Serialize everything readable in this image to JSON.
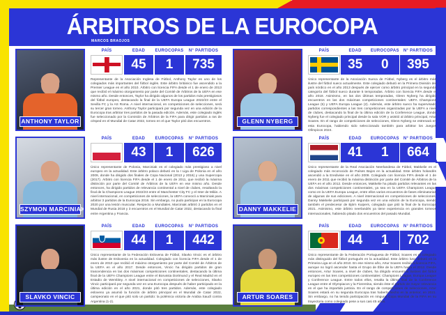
{
  "page": {
    "title": "ÁRBITROS DE LA EUROCOPA",
    "byline": "MARCOS BRAOJOS",
    "colors": {
      "accent_blue": "#2b35d6",
      "yellow": "#f9e300",
      "red": "#e61b22",
      "green": "#5a7f3e"
    }
  },
  "table_headers": {
    "pais": "PAÍS",
    "edad": "EDAD",
    "eurocopas": "EUROCOPAS",
    "partidos": "N° PARTIDOS"
  },
  "footer": {
    "ball_icon": "soccer-ball-icon"
  },
  "referees": [
    {
      "name": "ANTHONY TAYLOR",
      "flag": "england",
      "edad": "45",
      "eurocopas": "1",
      "partidos": "735",
      "bio": "Representante de la Asociación Inglesa de Fútbol, Anthony Taylor es uno de los colegiados más importantes del fútbol inglés. Este árbitro británico fue ascendido a la Premier League en el año 2010. Árbitro con licencia FIFA desde el 1 de enero de 2013 que recibió el máximo otorgamiento por parte del Comité de Árbitros de la UEFA en ese mismo año. Desde entonces, Taylor ha dirigido algunos de los partidos más prestigiosos del fútbol europeo, destacando la final de la UEFA Europa League 2022/23 entre el Sevilla FC y la AS Roma. A nivel internacional, en competiciones de selecciones, será su tercer gran torneo. Anthony Taylor participará por segunda vez en una edición de la Eurocopa tras arbitrar tres partidos de la pasada edición. Además, este colegiado inglés fue seleccionado por la Comisión de Árbitros de la FIFA para dirigir partidos a ras de césped en el Mundial de Catar 2022, torneo en el que Taylor pitó dos encuentros.",
      "photo": {
        "bg1": "#515c73",
        "bg2": "#1d222c",
        "shirt": "#e4632b",
        "skin": "#d8a185",
        "hair": "#d8a185"
      }
    },
    {
      "name": "GLENN NYBERG",
      "flag": "sweden",
      "edad": "35",
      "eurocopas": "0",
      "partidos": "395",
      "bio": "Único representante de la Asociación Sueca de Fútbol, Nyberg es el árbitro más ilustre del fútbol sueco actualmente. Este colegiado debutó en la Primera División del país nórdico en el año 2013 después de ejercer como árbitro principal en la segunda categoría del fútbol sueco durante 5 temporadas. Árbitro con licencia FIFA desde el año 2018. Asimismo, en las dos últimas temporadas, Glenn Nyberg ha dirigido encuentros en las dos máximas competiciones continentales: UEFA Champions League (5) y UEFA Europa League (2). Además, este árbitro sueco ha supervisado partidos correspondientes a las tres competiciones organizadas por la UEFA a nivel de clubes, destacando la final de la última edición de la Conference League, donde Nyberg fue el colegiado principal desde la sala VOR y asistió al árbitro principal, Artur Soares. En el rango de competiciones de selecciones, Glenn Nyberg se estrenará en esta Eurocopa, habiendo sido seleccionado también para arbitrar los Juegos Olímpicos 2024.",
      "photo": {
        "bg1": "#8c3644",
        "bg2": "#3f1a26",
        "shirt": "#9cc7e4",
        "skin": "#dcab8d",
        "hair": "#c89b52"
      }
    },
    {
      "name": "SZYMON MARCINIAK",
      "flag": "poland",
      "edad": "43",
      "eurocopas": "1",
      "partidos": "626",
      "bio": "Único representante de Polonia, Marciniak es el colegiado más prestigioso a nivel europeo en la actualidad. Este árbitro polaco debutó en la I Liga de Polonia en el año 2009, donde ha dirigido dos finales de Copa Nacional (2013 y 2016) y una Supercopa (2017). Árbitro con licencia FIFA desde el 1 de enero de 2011, que recibió la máxima distinción por parte del Comité de Árbitros de la UEFA en ese mismo año. Desde entonces, ha dirigido partidos de relevancia continental a nivel de clubes, resaltando la final de la Champions League 2022/23 entre el Manchester City FC y el Inter de Milán. A nivel internacional, en competiciones de selecciones, la UEFA convocó a Marciniak para arbitrar 3 partidos de la Eurocopa 2016. Sin embargo, no pudo participar en la Eurocopa 2020 por una lesión muscular. Respecto a Mundiales, Marciniak arbitró 2 partidos en el Mundial de Rusia 2018 y 3 encuentros en el Mundial de Catar 2022, destacando la final entre Argentina y Francia.",
      "photo": {
        "bg1": "#d6dbe2",
        "bg2": "#969eac",
        "shirt": "#85b8dc",
        "skin": "#d8a185",
        "hair": "#d8a185"
      }
    },
    {
      "name": "DANNY MAKKELIE",
      "flag": "netherlands",
      "edad": "41",
      "eurocopas": "1",
      "partidos": "664",
      "bio": "Único representante de la Real Asociación Neerlandesa de Fútbol, Makkelie es el colegiado más reconocido de Países Bajos en la actualidad. Este árbitro holandés ascendió a la Eredivisie en el año 2009. Colegiado con licencia FIFA desde el 1 de enero de 2011 que recibió la máxima distinción por parte del Comité de Árbitros de la UEFA en el año 2012. Desde entonces, Makkelie ha pitado partidos relevantes en las dos máximas competiciones continentales, ya sea en la UEFA Champions League como en la UEFA Europa League, entre ellos varios encuentros de fases eliminatorias de algunas de sus ediciones. A nivel internacional en competiciones de selecciones, Danny Makkelie participará por segunda vez en una edición de la Eurocopa, siendo también el predecesor de Björn Kuipers, colegiado que pitó la final de la Eurocopa 2021. Asimismo, este árbitro neerlandés ya tiene experiencia en grandes torneos internacionales, habiendo pitado dos encuentros del pasado Mundial.",
      "photo": {
        "bg1": "#b6c1ce",
        "bg2": "#7f8b9b",
        "shirt": "#9cc7e4",
        "skin": "#dcab8d",
        "hair": "#b5904e"
      }
    },
    {
      "name": "SLAVKO VINCIC",
      "flag": "slovenia",
      "edad": "44",
      "eurocopas": "1",
      "partidos": "442",
      "bio": "Único representante de la Federación Eslovena de Fútbol, Slavko Vincic es el árbitro más ilustre de Eslovenia en la actualidad. Colegiado con licencia FIFA desde el 1 de enero de 2010 que recibió el máximo otorgamiento por parte del Comité de Árbitros de la UEFA en el año 2017. Desde entonces, Vincic ha dirigido partidos de gran trascendencia en las dos máximas competiciones continentales, destacando la última final de la UEFA Champions League entre el Borussia Dortmund y el Real Madrid en el Estadio de Wembley. A nivel internacional en competiciones de selecciones, Slavko Vincic participará por segunda vez en una Eurocopa después de haber participado en la última edición en el año 2021, donde pitó tres partidos. Además, este colegiado esloveno ya asumió la función de árbitro principal en el Mundial de Catar 2022, campeonato en el que pitó solo un partido: la polémica victoria de Arabia Saudí contra Argentina (1-2).",
      "photo": {
        "bg1": "#2a3240",
        "bg2": "#0e1219",
        "shirt": "#253753",
        "skin": "#d8a185",
        "hair": "#3a3f4a"
      }
    },
    {
      "name": "ARTUR SOARES",
      "flag": "portugal",
      "edad": "44",
      "eurocopas": "1",
      "partidos": "702",
      "bio": "Único representante de la Federación Portuguesa de Fútbol, Soares es el colegiado más distinguido del fútbol portugués en la actualidad. Este árbitro luso debutó en la Primeira Liga en el año 2010. En ese mismo año, Artur Soares recibió la licencia FIFA, aunque no logró ascender hasta el Grupo de Élite de la UEFA hasta el 2012. Desde entonces, Artur Soares, a nivel de clubes, ha dirigido encuentros ilustres del fútbol europeo en las tres competiciones continentales: Champions League, Europa League y Conference League. Entre todos ellos, resalta la última final de la Conference League entre el Olympiacos y la Fiorentina, siendo éste el partido de mayor relevancia en el que ha impartido justicia. En el rango de competiciones de selecciones, Artur Soares estará en su segunda Eurocopa tras haberlo hecho en la anterior, en 2021. Sin embargo, no ha tenido participación en ninguna Copa Mundial de la FIFA en su trayectoria como colegiado pese a sus casi 45 años.",
      "photo": {
        "bg1": "#555d6a",
        "bg2": "#2a2f38",
        "shirt": "#e3d83b",
        "skin": "#c99877",
        "hair": "#8a7a66"
      }
    }
  ]
}
